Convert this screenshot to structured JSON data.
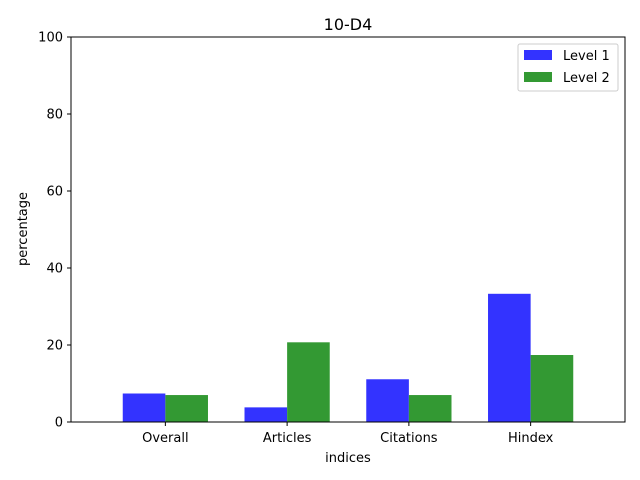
{
  "chart_data": {
    "type": "bar",
    "title": "10-D4",
    "xlabel": "indices",
    "ylabel": "percentage",
    "categories": [
      "Overall",
      "Articles",
      "Citations",
      "Hindex"
    ],
    "series": [
      {
        "name": "Level 1",
        "color": "#3333ff",
        "values": [
          7.4,
          3.8,
          11.1,
          33.3
        ]
      },
      {
        "name": "Level 2",
        "color": "#339933",
        "values": [
          7.0,
          20.7,
          7.0,
          17.4
        ]
      }
    ],
    "ylim": [
      0,
      100
    ],
    "yticks": [
      0,
      20,
      40,
      60,
      80,
      100
    ],
    "grid": false,
    "legend_position": "top-right"
  }
}
